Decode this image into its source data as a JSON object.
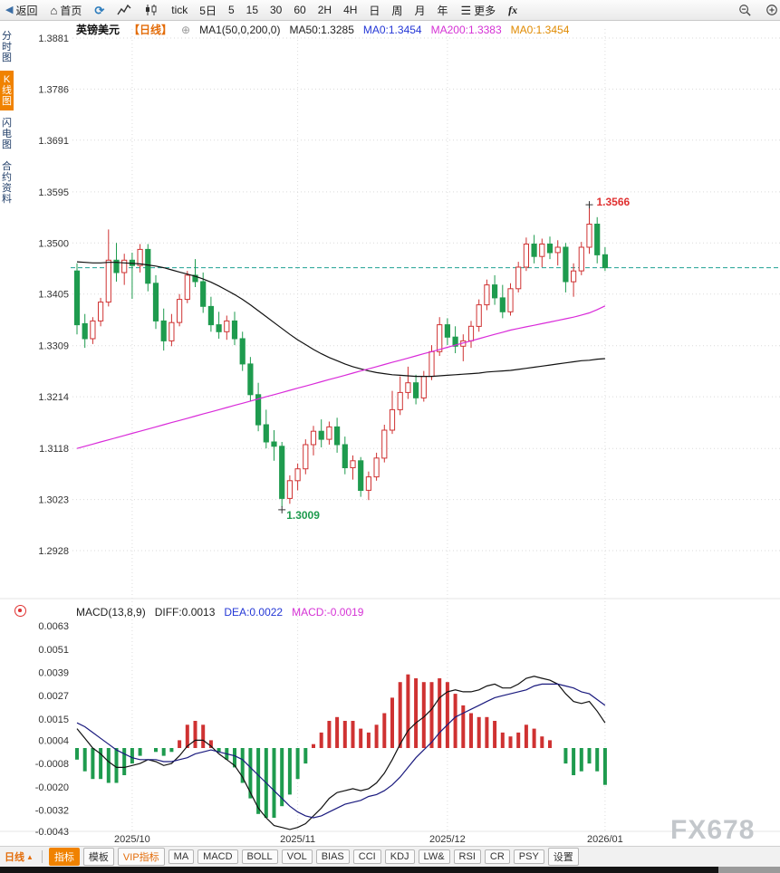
{
  "toolbar": {
    "back": "返回",
    "home": "首页",
    "periods": [
      "tick",
      "5日",
      "5",
      "15",
      "30",
      "60",
      "2H",
      "4H",
      "日",
      "周",
      "月",
      "年"
    ],
    "more": "更多",
    "fx": "fx"
  },
  "sidebar": {
    "tabs": [
      {
        "label": "分时图",
        "selected": false
      },
      {
        "label": "K线图",
        "selected": true
      },
      {
        "label": "闪电图",
        "selected": false
      },
      {
        "label": "合约资料",
        "selected": false
      }
    ]
  },
  "chart_header": {
    "symbol": "英镑美元",
    "period_tag": "【日线】",
    "ma_settings": "MA1(50,0,200,0)",
    "ma_labels": [
      {
        "text": "MA50:1.3285",
        "color": "#222222"
      },
      {
        "text": "MA0:1.3454",
        "color": "#2437d6"
      },
      {
        "text": "MA200:1.3383",
        "color": "#d532d5"
      },
      {
        "text": "MA0:1.3454",
        "color": "#e08a00"
      }
    ]
  },
  "macd_header": {
    "title": "MACD(13,8,9)",
    "labels": [
      {
        "text": "DIFF:0.0013",
        "color": "#222222"
      },
      {
        "text": "DEA:0.0022",
        "color": "#2437d6"
      },
      {
        "text": "MACD:-0.0019",
        "color": "#d532d5"
      }
    ]
  },
  "bottom_bar": {
    "period": "日线",
    "tabs": [
      {
        "label": "指标",
        "selected": true,
        "vip": false
      },
      {
        "label": "模板",
        "selected": false,
        "vip": false
      },
      {
        "label": "VIP指标",
        "selected": false,
        "vip": true
      },
      {
        "label": "MA",
        "selected": false,
        "vip": false
      },
      {
        "label": "MACD",
        "selected": false,
        "vip": false
      },
      {
        "label": "BOLL",
        "selected": false,
        "vip": false
      },
      {
        "label": "VOL",
        "selected": false,
        "vip": false
      },
      {
        "label": "BIAS",
        "selected": false,
        "vip": false
      },
      {
        "label": "CCI",
        "selected": false,
        "vip": false
      },
      {
        "label": "KDJ",
        "selected": false,
        "vip": false
      },
      {
        "label": "LW&",
        "selected": false,
        "vip": false
      },
      {
        "label": "RSI",
        "selected": false,
        "vip": false
      },
      {
        "label": "CR",
        "selected": false,
        "vip": false
      },
      {
        "label": "PSY",
        "selected": false,
        "vip": false
      },
      {
        "label": "设置",
        "selected": false,
        "vip": false
      }
    ]
  },
  "watermark": "FX678",
  "chart_data": {
    "type": "candlestick",
    "panes": [
      "price",
      "macd"
    ],
    "symbol": "英镑美元",
    "period": "日线",
    "title": "英镑美元 日线",
    "price_axis_ticks": [
      "1.3881",
      "1.3786",
      "1.3691",
      "1.3595",
      "1.3500",
      "1.3405",
      "1.3309",
      "1.3214",
      "1.3118",
      "1.3023",
      "1.2928"
    ],
    "macd_axis_ticks": [
      "0.0063",
      "0.0051",
      "0.0039",
      "0.0027",
      "0.0015",
      "0.0004",
      "-0.0008",
      "-0.0020",
      "-0.0032",
      "-0.0043"
    ],
    "x_ticks": [
      {
        "label": "2025/10",
        "index": 7
      },
      {
        "label": "2025/11",
        "index": 28
      },
      {
        "label": "2025/12",
        "index": 47
      },
      {
        "label": "2026/01",
        "index": 67
      }
    ],
    "last_price": 1.3454,
    "annotations": {
      "high": {
        "label": "1.3566",
        "value": 1.3566,
        "index": 65,
        "color": "#e03131"
      },
      "low": {
        "label": "1.3009",
        "value": 1.3009,
        "index": 26,
        "color": "#1e9b4e"
      }
    },
    "colors": {
      "up": "#cf3232",
      "down": "#1e9b4e",
      "ma50": "#111111",
      "ma200": "#d92bd9",
      "dif": "#111111",
      "dea": "#1a1a7e",
      "last_price_line": "#1fa193"
    },
    "candles": [
      [
        1.3448,
        1.3462,
        1.333,
        1.3348
      ],
      [
        1.335,
        1.3368,
        1.3305,
        1.3322
      ],
      [
        1.3322,
        1.3362,
        1.3312,
        1.3355
      ],
      [
        1.3355,
        1.3398,
        1.3345,
        1.339
      ],
      [
        1.339,
        1.3525,
        1.3382,
        1.3468
      ],
      [
        1.3468,
        1.35,
        1.3428,
        1.3445
      ],
      [
        1.3445,
        1.348,
        1.3422,
        1.3468
      ],
      [
        1.3468,
        1.3482,
        1.3396,
        1.3458
      ],
      [
        1.3458,
        1.3498,
        1.3445,
        1.3488
      ],
      [
        1.3488,
        1.3498,
        1.341,
        1.3425
      ],
      [
        1.3425,
        1.344,
        1.334,
        1.3355
      ],
      [
        1.3355,
        1.3378,
        1.33,
        1.3318
      ],
      [
        1.3318,
        1.3368,
        1.3308,
        1.3352
      ],
      [
        1.3352,
        1.3405,
        1.3345,
        1.3395
      ],
      [
        1.3395,
        1.3448,
        1.3388,
        1.344
      ],
      [
        1.344,
        1.347,
        1.3418,
        1.3428
      ],
      [
        1.3428,
        1.3445,
        1.337,
        1.3382
      ],
      [
        1.3382,
        1.34,
        1.3335,
        1.3348
      ],
      [
        1.3348,
        1.3372,
        1.3322,
        1.3335
      ],
      [
        1.3335,
        1.3365,
        1.332,
        1.3355
      ],
      [
        1.3355,
        1.3372,
        1.331,
        1.3322
      ],
      [
        1.3322,
        1.3335,
        1.3262,
        1.3275
      ],
      [
        1.3275,
        1.3288,
        1.3205,
        1.3218
      ],
      [
        1.3218,
        1.324,
        1.315,
        1.3162
      ],
      [
        1.3162,
        1.319,
        1.3118,
        1.313
      ],
      [
        1.313,
        1.3152,
        1.3095,
        1.3122
      ],
      [
        1.3122,
        1.313,
        1.3009,
        1.3025
      ],
      [
        1.3025,
        1.3068,
        1.3015,
        1.3058
      ],
      [
        1.3058,
        1.309,
        1.304,
        1.308
      ],
      [
        1.308,
        1.3135,
        1.307,
        1.3125
      ],
      [
        1.3125,
        1.316,
        1.3105,
        1.315
      ],
      [
        1.315,
        1.3172,
        1.312,
        1.3135
      ],
      [
        1.3135,
        1.3168,
        1.3125,
        1.3158
      ],
      [
        1.3158,
        1.3175,
        1.311,
        1.3125
      ],
      [
        1.3125,
        1.314,
        1.307,
        1.3082
      ],
      [
        1.3082,
        1.3105,
        1.306,
        1.3095
      ],
      [
        1.3095,
        1.3102,
        1.3028,
        1.304
      ],
      [
        1.304,
        1.3075,
        1.3022,
        1.3065
      ],
      [
        1.3065,
        1.311,
        1.3058,
        1.31
      ],
      [
        1.31,
        1.3162,
        1.3092,
        1.3152
      ],
      [
        1.3152,
        1.3225,
        1.3145,
        1.319
      ],
      [
        1.319,
        1.3252,
        1.318,
        1.3222
      ],
      [
        1.3222,
        1.327,
        1.321,
        1.324
      ],
      [
        1.324,
        1.3255,
        1.32,
        1.3212
      ],
      [
        1.3212,
        1.3262,
        1.3205,
        1.3252
      ],
      [
        1.3252,
        1.331,
        1.3245,
        1.3298
      ],
      [
        1.3298,
        1.3362,
        1.329,
        1.3348
      ],
      [
        1.3348,
        1.336,
        1.331,
        1.3325
      ],
      [
        1.3325,
        1.3345,
        1.3295,
        1.3308
      ],
      [
        1.3308,
        1.333,
        1.328,
        1.3318
      ],
      [
        1.3318,
        1.3355,
        1.3305,
        1.3345
      ],
      [
        1.3345,
        1.3395,
        1.3335,
        1.3385
      ],
      [
        1.3385,
        1.3432,
        1.3375,
        1.3422
      ],
      [
        1.3422,
        1.344,
        1.3385,
        1.3398
      ],
      [
        1.3398,
        1.3422,
        1.336,
        1.3372
      ],
      [
        1.3372,
        1.3425,
        1.3365,
        1.3415
      ],
      [
        1.3415,
        1.3465,
        1.3408,
        1.3455
      ],
      [
        1.3455,
        1.351,
        1.3448,
        1.3498
      ],
      [
        1.3498,
        1.3515,
        1.3462,
        1.3475
      ],
      [
        1.3475,
        1.3508,
        1.3455,
        1.3498
      ],
      [
        1.3498,
        1.3512,
        1.347,
        1.3482
      ],
      [
        1.3482,
        1.3505,
        1.3458,
        1.3492
      ],
      [
        1.3492,
        1.35,
        1.3408,
        1.3428
      ],
      [
        1.3428,
        1.3462,
        1.34,
        1.3448
      ],
      [
        1.3448,
        1.3502,
        1.344,
        1.3492
      ],
      [
        1.3492,
        1.3566,
        1.348,
        1.3535
      ],
      [
        1.3535,
        1.3548,
        1.3462,
        1.3478
      ],
      [
        1.3478,
        1.3492,
        1.3448,
        1.3454
      ]
    ],
    "ma50": [
      1.3465,
      1.3464,
      1.3463,
      1.3463,
      1.3464,
      1.3464,
      1.3463,
      1.3462,
      1.3461,
      1.3459,
      1.3457,
      1.3454,
      1.345,
      1.3446,
      1.3442,
      1.3438,
      1.3433,
      1.3427,
      1.342,
      1.3412,
      1.3404,
      1.3395,
      1.3385,
      1.3374,
      1.3363,
      1.3352,
      1.3341,
      1.333,
      1.332,
      1.3311,
      1.3302,
      1.3294,
      1.3287,
      1.3281,
      1.3275,
      1.327,
      1.3266,
      1.3262,
      1.3259,
      1.3257,
      1.3255,
      1.3254,
      1.3253,
      1.3252,
      1.3252,
      1.3252,
      1.3253,
      1.3254,
      1.3255,
      1.3256,
      1.3257,
      1.3258,
      1.326,
      1.3261,
      1.3262,
      1.3263,
      1.3265,
      1.3267,
      1.3269,
      1.3271,
      1.3273,
      1.3275,
      1.3277,
      1.3279,
      1.3281,
      1.3282,
      1.3284,
      1.3285
    ],
    "ma200": [
      1.3118,
      1.3122,
      1.3126,
      1.313,
      1.3134,
      1.3138,
      1.3142,
      1.3146,
      1.315,
      1.3154,
      1.3158,
      1.3162,
      1.3166,
      1.317,
      1.3174,
      1.3178,
      1.3182,
      1.3186,
      1.319,
      1.3194,
      1.3198,
      1.3202,
      1.3206,
      1.321,
      1.3214,
      1.3218,
      1.3222,
      1.3226,
      1.323,
      1.3234,
      1.3238,
      1.3242,
      1.3246,
      1.325,
      1.3254,
      1.3258,
      1.3262,
      1.3266,
      1.327,
      1.3274,
      1.3278,
      1.3282,
      1.3286,
      1.329,
      1.3294,
      1.3298,
      1.3302,
      1.3306,
      1.331,
      1.3314,
      1.3318,
      1.3322,
      1.3326,
      1.333,
      1.3334,
      1.3338,
      1.3341,
      1.3344,
      1.3347,
      1.335,
      1.3353,
      1.3356,
      1.3359,
      1.3362,
      1.3366,
      1.337,
      1.3376,
      1.3383
    ],
    "dif": [
      0.001,
      0.0005,
      0.0,
      -0.0003,
      -0.0007,
      -0.001,
      -0.001,
      -0.0009,
      -0.0008,
      -0.0006,
      -0.0007,
      -0.0009,
      -0.0008,
      -0.0004,
      0.0001,
      0.0004,
      0.0004,
      0.0001,
      -0.0003,
      -0.0006,
      -0.0009,
      -0.0015,
      -0.0023,
      -0.0031,
      -0.0036,
      -0.004,
      -0.0041,
      -0.0042,
      -0.0041,
      -0.0039,
      -0.0035,
      -0.0031,
      -0.0026,
      -0.0023,
      -0.0022,
      -0.0021,
      -0.0022,
      -0.0021,
      -0.0018,
      -0.0013,
      -0.0006,
      0.0002,
      0.0009,
      0.0013,
      0.0016,
      0.002,
      0.0026,
      0.0029,
      0.003,
      0.0029,
      0.0029,
      0.003,
      0.0032,
      0.0033,
      0.0031,
      0.0031,
      0.0033,
      0.0036,
      0.0037,
      0.0036,
      0.0035,
      0.0033,
      0.0028,
      0.0024,
      0.0023,
      0.0024,
      0.0019,
      0.0013
    ],
    "dea": [
      0.0013,
      0.0011,
      0.0008,
      0.0005,
      0.0002,
      -0.0001,
      -0.0003,
      -0.0005,
      -0.0006,
      -0.0006,
      -0.0006,
      -0.0007,
      -0.0007,
      -0.0006,
      -0.0005,
      -0.0003,
      -0.0002,
      -0.0001,
      -0.0002,
      -0.0003,
      -0.0004,
      -0.0006,
      -0.001,
      -0.0014,
      -0.0018,
      -0.0022,
      -0.0026,
      -0.003,
      -0.0033,
      -0.0035,
      -0.0036,
      -0.0035,
      -0.0033,
      -0.0031,
      -0.0029,
      -0.0028,
      -0.0027,
      -0.0025,
      -0.0024,
      -0.0022,
      -0.0019,
      -0.0015,
      -0.001,
      -0.0005,
      -0.0001,
      0.0003,
      0.0008,
      0.0012,
      0.0016,
      0.0018,
      0.002,
      0.0022,
      0.0024,
      0.0026,
      0.0027,
      0.0028,
      0.0029,
      0.003,
      0.0032,
      0.0033,
      0.0033,
      0.0033,
      0.0032,
      0.0031,
      0.0029,
      0.0028,
      0.0025,
      0.0022
    ],
    "macd_hist": [
      -0.0006,
      -0.0012,
      -0.0016,
      -0.0016,
      -0.0018,
      -0.0018,
      -0.0014,
      -0.0008,
      -0.0004,
      0.0,
      -0.0002,
      -0.0004,
      -0.0002,
      0.0004,
      0.0012,
      0.0014,
      0.0012,
      0.0004,
      -0.0002,
      -0.0006,
      -0.001,
      -0.0018,
      -0.0026,
      -0.0034,
      -0.0036,
      -0.0036,
      -0.003,
      -0.0024,
      -0.0016,
      -0.0008,
      0.0002,
      0.0008,
      0.0014,
      0.0016,
      0.0014,
      0.0014,
      0.001,
      0.0008,
      0.0012,
      0.0018,
      0.0026,
      0.0034,
      0.0038,
      0.0036,
      0.0034,
      0.0034,
      0.0036,
      0.0034,
      0.0028,
      0.0022,
      0.0018,
      0.0016,
      0.0016,
      0.0014,
      0.0008,
      0.0006,
      0.0008,
      0.0012,
      0.001,
      0.0006,
      0.0004,
      0.0,
      -0.0008,
      -0.0014,
      -0.0012,
      -0.0008,
      -0.0012,
      -0.0019
    ],
    "macd_formula": "hist = 2*(dif-dea)"
  }
}
